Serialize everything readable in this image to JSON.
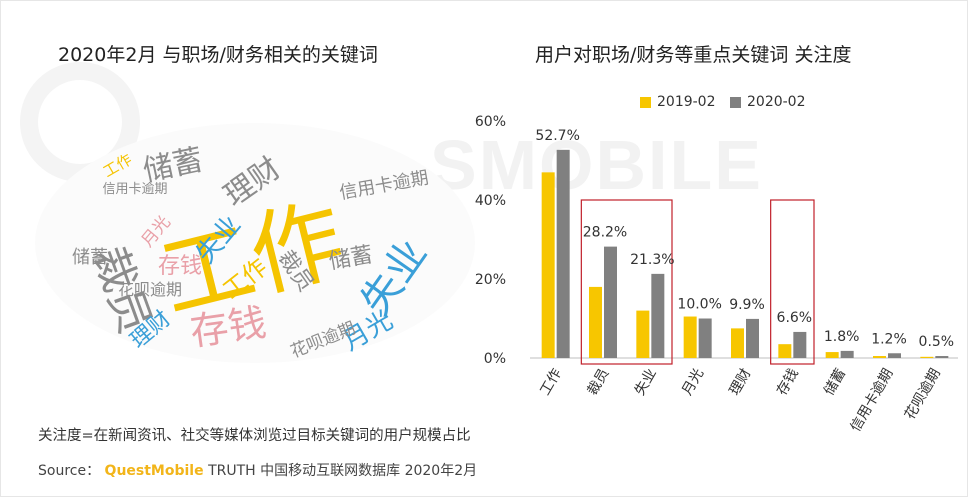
{
  "titles": {
    "left": "2020年2月 与职场/财务相关的关键词",
    "right": "用户对职场/财务等重点关键词 关注度"
  },
  "watermark": "SMOBILE",
  "note": "关注度=在新闻资讯、社交等媒体浏览过目标关键词的用户规模占比",
  "source": {
    "prefix": "Source：",
    "brand": "QuestMobile",
    "rest": " TRUTH 中国移动互联网数据库 2020年2月"
  },
  "colors": {
    "series_2019": "#f7c600",
    "series_2020": "#808080",
    "highlight": "#c0202a",
    "cloud_yellow": "#f5c400",
    "cloud_gray": "#8c8c8c",
    "cloud_blue": "#3a9fd8",
    "cloud_pink": "#e9a0a8",
    "cloud_lightgray": "#c8c8c8"
  },
  "word_cloud": {
    "words": [
      "工作",
      "裁员",
      "失业",
      "存钱",
      "储蓄",
      "理财",
      "月光",
      "信用卡逾期",
      "花呗逾期",
      "储蓄",
      "存钱",
      "理财",
      "失业",
      "工作",
      "月光",
      "裁员",
      "花呗逾期",
      "信用卡逾期",
      "工作",
      "储蓄"
    ]
  },
  "chart_data": {
    "type": "bar",
    "title": "用户对职场/财务等重点关键词 关注度",
    "categories": [
      "工作",
      "裁员",
      "失业",
      "月光",
      "理财",
      "存钱",
      "储蓄",
      "信用卡逾期",
      "花呗逾期"
    ],
    "series": [
      {
        "name": "2019-02",
        "values": [
          47.0,
          18.0,
          12.0,
          10.5,
          7.5,
          3.5,
          1.5,
          0.5,
          0.3
        ]
      },
      {
        "name": "2020-02",
        "values": [
          52.7,
          28.2,
          21.3,
          10.0,
          9.9,
          6.6,
          1.8,
          1.2,
          0.5
        ]
      }
    ],
    "data_labels": [
      "52.7%",
      "28.2%",
      "21.3%",
      "10.0%",
      "9.9%",
      "6.6%",
      "1.8%",
      "1.2%",
      "0.5%"
    ],
    "yticks": [
      "0%",
      "20%",
      "40%",
      "60%"
    ],
    "ylim": [
      0,
      60
    ],
    "highlight_groups": [
      [
        1,
        2
      ],
      [
        5,
        5
      ]
    ],
    "legend_position": "top",
    "grid": false
  }
}
